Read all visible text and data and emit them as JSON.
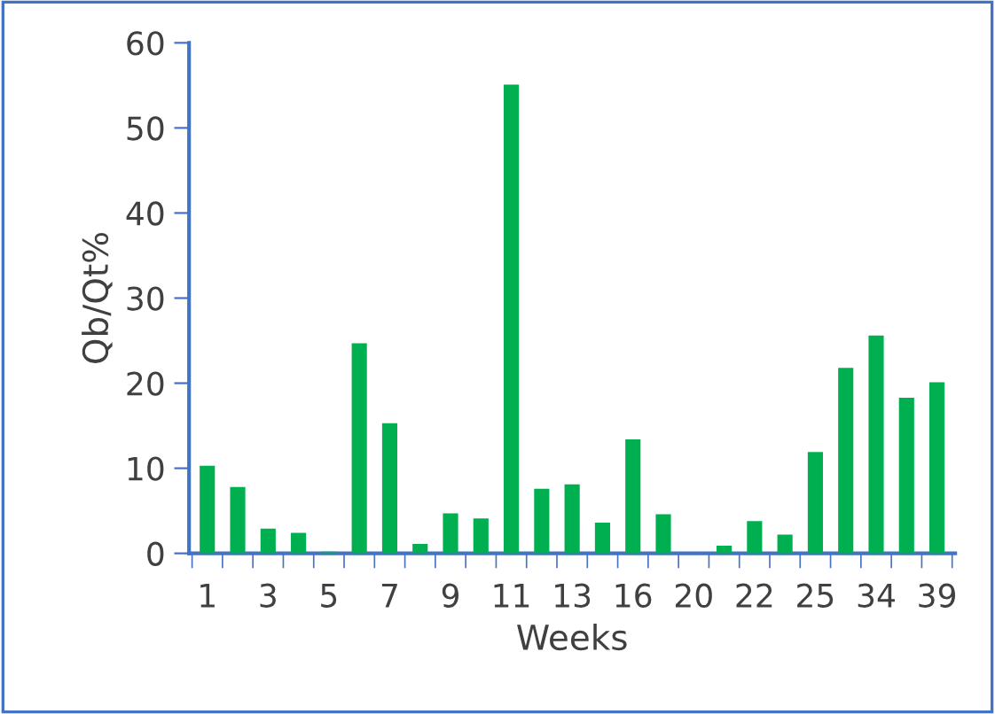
{
  "chart_data": {
    "type": "bar",
    "xlabel": "Weeks",
    "ylabel": "Qb/Qt%",
    "categories": [
      "1",
      null,
      "3",
      null,
      "5",
      null,
      "7",
      null,
      "9",
      null,
      "11",
      null,
      "13",
      null,
      "16",
      null,
      "20",
      null,
      "22",
      null,
      "25",
      null,
      "34",
      null,
      "39"
    ],
    "values": [
      10.3,
      7.8,
      2.9,
      2.4,
      0.2,
      24.7,
      15.3,
      1.1,
      4.7,
      4.1,
      55.1,
      7.6,
      8.1,
      3.6,
      13.4,
      4.6,
      0,
      0.9,
      3.8,
      2.2,
      11.9,
      21.8,
      25.6,
      18.3,
      20.1
    ],
    "color": "#00b050",
    "ylim": [
      0,
      60
    ],
    "yticks": [
      0,
      10,
      20,
      30,
      40,
      50,
      60
    ],
    "grid": false,
    "legend": false
  }
}
